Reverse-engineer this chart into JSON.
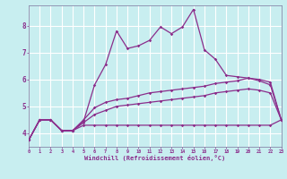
{
  "background_color": "#c8eef0",
  "grid_color": "#c0dfe0",
  "line_color": "#8b2d8b",
  "xlabel": "Windchill (Refroidissement éolien,°C)",
  "xlim": [
    0,
    23
  ],
  "ylim": [
    3.5,
    8.75
  ],
  "xtick_labels": [
    "0",
    "1",
    "2",
    "3",
    "4",
    "5",
    "6",
    "7",
    "8",
    "9",
    "10",
    "11",
    "12",
    "13",
    "14",
    "15",
    "16",
    "17",
    "18",
    "19",
    "20",
    "21",
    "22",
    "23"
  ],
  "ytick_values": [
    4,
    5,
    6,
    7,
    8
  ],
  "s1_x": [
    0,
    1,
    2,
    3,
    4,
    5,
    6,
    7,
    8,
    9,
    10,
    11,
    12,
    13,
    14,
    15,
    16,
    17,
    18,
    19,
    20,
    21,
    22,
    23
  ],
  "s1_y": [
    3.75,
    4.5,
    4.5,
    4.1,
    4.1,
    4.45,
    5.8,
    6.55,
    7.8,
    7.15,
    7.25,
    7.45,
    7.95,
    7.7,
    7.95,
    8.6,
    7.1,
    6.75,
    6.15,
    6.1,
    6.05,
    5.95,
    5.8,
    4.5
  ],
  "s2_x": [
    0,
    1,
    2,
    3,
    4,
    5,
    6,
    7,
    8,
    9,
    10,
    11,
    12,
    13,
    14,
    15,
    16,
    17,
    18,
    19,
    20,
    21,
    22,
    23
  ],
  "s2_y": [
    3.75,
    4.5,
    4.5,
    4.1,
    4.1,
    4.5,
    4.95,
    5.15,
    5.25,
    5.3,
    5.4,
    5.5,
    5.55,
    5.6,
    5.65,
    5.7,
    5.75,
    5.85,
    5.9,
    5.95,
    6.05,
    6.0,
    5.9,
    4.5
  ],
  "s3_x": [
    0,
    1,
    2,
    3,
    4,
    5,
    6,
    7,
    8,
    9,
    10,
    11,
    12,
    13,
    14,
    15,
    16,
    17,
    18,
    19,
    20,
    21,
    22,
    23
  ],
  "s3_y": [
    3.75,
    4.5,
    4.5,
    4.1,
    4.1,
    4.4,
    4.7,
    4.85,
    5.0,
    5.05,
    5.1,
    5.15,
    5.2,
    5.25,
    5.3,
    5.35,
    5.4,
    5.5,
    5.55,
    5.6,
    5.65,
    5.6,
    5.5,
    4.5
  ],
  "s4_x": [
    0,
    1,
    2,
    3,
    4,
    5,
    6,
    7,
    8,
    9,
    10,
    11,
    12,
    13,
    14,
    15,
    16,
    17,
    18,
    19,
    20,
    21,
    22,
    23
  ],
  "s4_y": [
    3.75,
    4.5,
    4.5,
    4.1,
    4.1,
    4.3,
    4.3,
    4.3,
    4.3,
    4.3,
    4.3,
    4.3,
    4.3,
    4.3,
    4.3,
    4.3,
    4.3,
    4.3,
    4.3,
    4.3,
    4.3,
    4.3,
    4.3,
    4.5
  ]
}
